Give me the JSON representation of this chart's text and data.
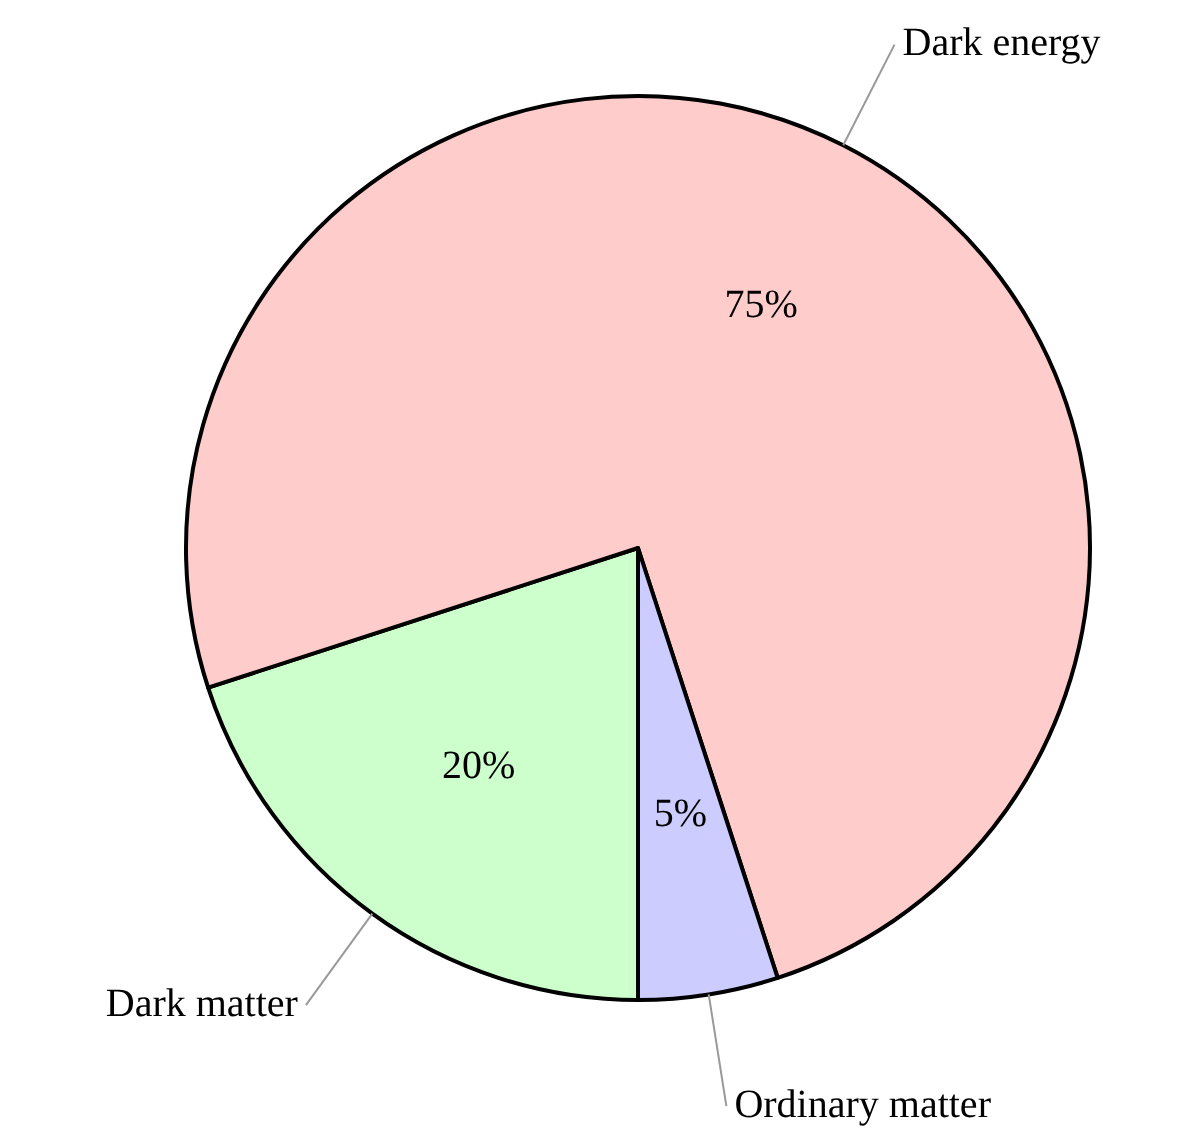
{
  "chart_data": {
    "type": "pie",
    "categories": [
      "Dark matter",
      "Dark energy",
      "Ordinary matter"
    ],
    "values": [
      20,
      75,
      5
    ],
    "colors": [
      "#ccffcc",
      "#ffcccc",
      "#ccccff"
    ],
    "value_labels": [
      "20%",
      "75%",
      "5%"
    ],
    "legend": false
  }
}
